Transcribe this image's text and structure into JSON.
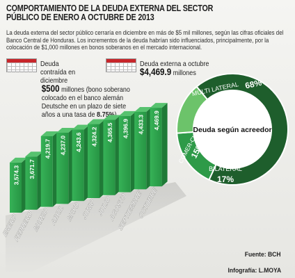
{
  "header": {
    "title_line1": "COMPORTAMIENTO DE LA DEUDA EXTERNA DEL SECTOR",
    "title_line2": "PÚBLICO DE ENERO A OCTUBRE DE 2013",
    "subtitle": "La deuda externa del sector público cerraría en diciembre en más de $5 mil millones, según las cifras oficiales del Banco Central de Honduras. Los incrementos de la deuda habrían sido influenciados, principalmente, por la colocación de $1,000 millones en bonos soberanos en el mercado internacional."
  },
  "annotations": {
    "december": {
      "label": "Deuda contraída en diciembre",
      "amount": "$500",
      "amount_unit": " millones (bono soberano colocado en el banco alemán Deutsche en un plazo de siete años a una tasa de ",
      "rate": "8.75%",
      "close": ")"
    },
    "october": {
      "label": "Deuda externa a octubre",
      "amount": "$4,469.9",
      "amount_unit": " millones"
    }
  },
  "chart_data": [
    {
      "type": "bar",
      "categories": [
        "ENERO",
        "FEBRERO",
        "MARZO",
        "ABRIL",
        "MAYO",
        "JUNIO",
        "JULIO",
        "AGOSTO",
        "SEPTIEMBRE",
        "OCTUBRE"
      ],
      "values": [
        3574.3,
        3671.7,
        4219.7,
        4237.0,
        4243.6,
        4324.2,
        4365.5,
        4396.9,
        4433.3,
        4469.9
      ],
      "value_labels": [
        "3,574.3",
        "3,671.7",
        "4,219.7",
        "4,237.0",
        "4,243.6",
        "4,324.2",
        "4,365.5",
        "4,396.9",
        "4,433.3",
        "4,469.9"
      ],
      "title": "",
      "colors": {
        "bar_front": "#2fa84e",
        "bar_side": "#1f7a37",
        "bar_top": "#57c26f"
      }
    },
    {
      "type": "pie",
      "title": "Deuda según acreedor",
      "slices": [
        {
          "name": "MULTI LATERAL",
          "value": 68,
          "label": "68%",
          "color": "#1e5e2c"
        },
        {
          "name": "BILATERAL",
          "value": 17,
          "label": "17%",
          "color": "#2e9a48"
        },
        {
          "name": "COMER-CIAL",
          "value": 15,
          "label": "15%",
          "color": "#6cc36a"
        }
      ]
    }
  ],
  "footer": {
    "source": "Fuente: BCH",
    "credit": "Infografía: L.MOYA"
  }
}
